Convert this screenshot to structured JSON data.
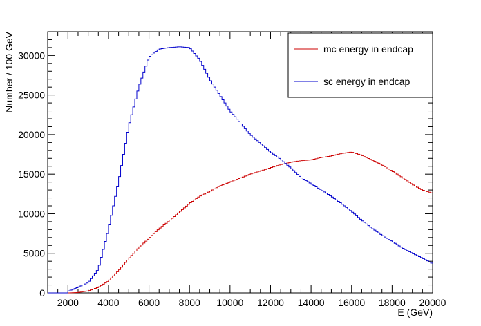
{
  "chart_data": {
    "type": "line",
    "style": "step-histogram",
    "title": "",
    "xlabel": "E (GeV)",
    "ylabel": "Number / 100 GeV",
    "xlim": [
      1000,
      20000
    ],
    "ylim": [
      0,
      33000
    ],
    "bin_width": 100,
    "x_ticks": [
      2000,
      4000,
      6000,
      8000,
      10000,
      12000,
      14000,
      16000,
      18000,
      20000
    ],
    "y_ticks": [
      0,
      5000,
      10000,
      15000,
      20000,
      25000,
      30000
    ],
    "grid": false,
    "legend_position": "top-right",
    "series": [
      {
        "name": "mc energy in endcap",
        "color": "#cc0000",
        "x": [
          2000,
          2500,
          3000,
          3500,
          4000,
          4500,
          5000,
          5500,
          6000,
          6500,
          7000,
          7500,
          8000,
          8500,
          9000,
          9500,
          10000,
          10500,
          11000,
          11500,
          12000,
          12500,
          13000,
          13500,
          14000,
          14500,
          15000,
          15500,
          16000,
          16500,
          17000,
          17500,
          18000,
          18500,
          19000,
          19500,
          20000
        ],
        "values": [
          0,
          50,
          250,
          700,
          1500,
          2800,
          4300,
          5700,
          6900,
          8100,
          9100,
          10200,
          11300,
          12200,
          12800,
          13500,
          14000,
          14500,
          15000,
          15400,
          15800,
          16200,
          16500,
          16700,
          16800,
          17100,
          17300,
          17600,
          17800,
          17400,
          16800,
          16200,
          15400,
          14600,
          13700,
          13000,
          12600
        ]
      },
      {
        "name": "sc energy in endcap",
        "color": "#0000cc",
        "x": [
          2000,
          2500,
          3000,
          3500,
          4000,
          4500,
          5000,
          5500,
          6000,
          6500,
          7000,
          7500,
          8000,
          8500,
          9000,
          9500,
          10000,
          10500,
          11000,
          11500,
          12000,
          12500,
          13000,
          13500,
          14000,
          14500,
          15000,
          15500,
          16000,
          16500,
          17000,
          17500,
          18000,
          18500,
          19000,
          19500,
          20000
        ],
        "values": [
          200,
          700,
          1300,
          3000,
          8000,
          14000,
          21000,
          26000,
          29800,
          30800,
          31000,
          31100,
          31000,
          29500,
          27000,
          25000,
          23000,
          21500,
          20000,
          18900,
          17800,
          16900,
          15800,
          14600,
          13800,
          13000,
          12200,
          11300,
          10300,
          9200,
          8200,
          7300,
          6500,
          5700,
          5000,
          4400,
          3700
        ]
      }
    ]
  }
}
